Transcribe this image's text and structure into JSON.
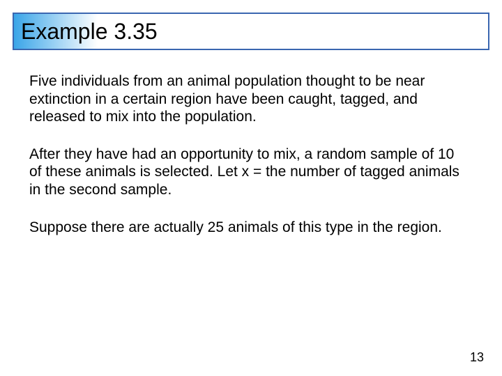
{
  "title": "Example 3.35",
  "paragraphs": {
    "p1": "Five individuals from an animal population thought to be near extinction in a certain region have been caught, tagged, and released to mix into the population.",
    "p2": " After they have had an opportunity to mix, a random sample of 10 of these animals is selected. Let x = the number of tagged animals in the second sample.",
    "p3": " Suppose there are actually 25 animals of this type in the region."
  },
  "page_number": "13",
  "colors": {
    "title_border": "#3a66b0",
    "gradient_start": "#3aa5e8",
    "gradient_end": "#ffffff",
    "text": "#000000",
    "background": "#ffffff"
  },
  "style": {
    "title_fontsize": 32,
    "body_fontsize": 21,
    "pagenum_fontsize": 18,
    "gradient_width": 120
  }
}
